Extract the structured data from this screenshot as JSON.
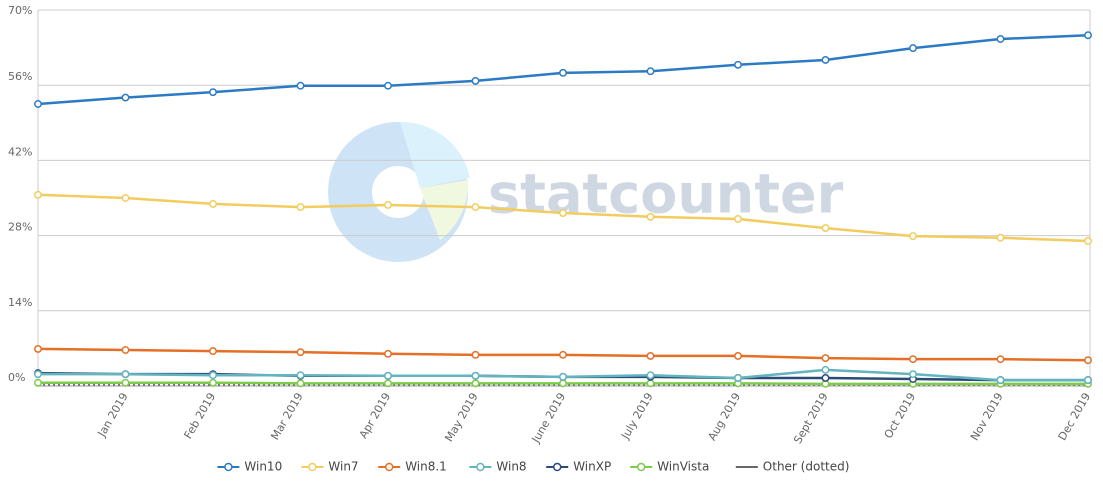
{
  "chart_data": {
    "type": "line",
    "watermark": "statcounter",
    "categories": [
      null,
      "Jan 2019",
      "Feb 2019",
      "Mar 2019",
      "Apr 2019",
      "May 2019",
      "June 2019",
      "July 2019",
      "Aug 2019",
      "Sept 2019",
      "Oct 2019",
      "Nov 2019",
      "Dec 2019"
    ],
    "ylim": [
      0,
      70
    ],
    "yticks": [
      {
        "value": 0,
        "label": "0%"
      },
      {
        "value": 14,
        "label": "14%"
      },
      {
        "value": 28,
        "label": "28%"
      },
      {
        "value": 42,
        "label": "42%"
      },
      {
        "value": 56,
        "label": "56%"
      },
      {
        "value": 70,
        "label": "70%"
      }
    ],
    "grid": true,
    "legend": "bottom",
    "series": [
      {
        "name": "Win10",
        "color": "#2b7bc4",
        "markers": true,
        "line_style": "solid",
        "values": [
          52.5,
          53.7,
          54.7,
          55.9,
          55.9,
          56.8,
          58.3,
          58.6,
          59.8,
          60.7,
          62.9,
          64.6,
          65.3
        ]
      },
      {
        "name": "Win7",
        "color": "#f2cc5e",
        "markers": true,
        "line_style": "solid",
        "values": [
          35.6,
          35.0,
          33.9,
          33.3,
          33.7,
          33.3,
          32.2,
          31.5,
          31.1,
          29.4,
          27.9,
          27.6,
          27.0
        ]
      },
      {
        "name": "Win8.1",
        "color": "#e56f26",
        "markers": true,
        "line_style": "solid",
        "values": [
          6.9,
          6.7,
          6.5,
          6.3,
          6.0,
          5.8,
          5.8,
          5.6,
          5.6,
          5.2,
          5.0,
          5.0,
          4.8
        ]
      },
      {
        "name": "Win8",
        "color": "#62b4bf",
        "markers": true,
        "line_style": "solid",
        "values": [
          2.2,
          2.2,
          2.0,
          2.0,
          1.9,
          1.9,
          1.7,
          2.0,
          1.5,
          3.0,
          2.2,
          1.1,
          1.1
        ]
      },
      {
        "name": "WinXP",
        "color": "#2c4a78",
        "markers": true,
        "line_style": "solid",
        "values": [
          2.4,
          2.2,
          2.2,
          1.9,
          1.9,
          1.9,
          1.7,
          1.7,
          1.5,
          1.5,
          1.3,
          1.1,
          1.1
        ]
      },
      {
        "name": "WinVista",
        "color": "#7ccb4a",
        "markers": true,
        "line_style": "solid",
        "values": [
          0.6,
          0.6,
          0.6,
          0.5,
          0.5,
          0.5,
          0.5,
          0.5,
          0.5,
          0.4,
          0.4,
          0.4,
          0.4
        ]
      },
      {
        "name": "Other (dotted)",
        "color": "#666666",
        "markers": false,
        "line_style": "dotted",
        "values": [
          0.2,
          0.2,
          0.2,
          0.2,
          0.2,
          0.2,
          0.2,
          0.2,
          0.2,
          0.2,
          0.2,
          0.2,
          0.2
        ]
      }
    ]
  }
}
